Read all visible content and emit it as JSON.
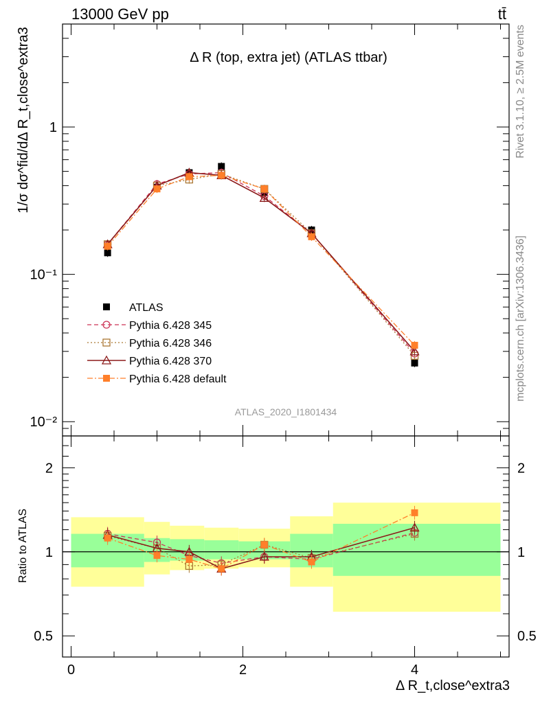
{
  "header": {
    "left": "13000 GeV pp",
    "right": "tt̄"
  },
  "side_labels": {
    "rivet": "Rivet 3.1.10, ≥ 2.5M events",
    "mcplots": "mcplots.cern.ch [arXiv:1306.3436]"
  },
  "chart_data": [
    {
      "type": "line",
      "title": "Δ R (top, extra jet) (ATLAS ttbar)",
      "analysis_id": "ATLAS_2020_I1801434",
      "ylabel": "1/σ dσ^fid/dΔ R_t,close^extra3",
      "yscale": "log",
      "xlim": [
        -0.1,
        5.1
      ],
      "ylim": [
        0.008,
        5
      ],
      "yticks": [
        "1",
        "10⁻¹",
        "10⁻²"
      ],
      "legend_position": "bottom-left",
      "x": [
        0.425,
        1.0,
        1.375,
        1.75,
        2.25,
        2.8,
        4.0
      ],
      "series": [
        {
          "name": "ATLAS",
          "color": "#000000",
          "marker": "filled-square",
          "line": "none",
          "values": [
            0.14,
            0.39,
            0.49,
            0.54,
            0.36,
            0.2,
            0.025
          ]
        },
        {
          "name": "Pythia 6.428 345",
          "color": "#cc3355",
          "marker": "open-circle",
          "line": "dashed",
          "values": [
            0.16,
            0.41,
            0.48,
            0.49,
            0.34,
            0.19,
            0.029
          ]
        },
        {
          "name": "Pythia 6.428 346",
          "color": "#aa7733",
          "marker": "open-square",
          "line": "dotted",
          "values": [
            0.16,
            0.4,
            0.44,
            0.48,
            0.38,
            0.19,
            0.028
          ]
        },
        {
          "name": "Pythia 6.428 370",
          "color": "#8b1a1a",
          "marker": "open-triangle",
          "line": "solid",
          "values": [
            0.16,
            0.4,
            0.49,
            0.47,
            0.33,
            0.19,
            0.03
          ]
        },
        {
          "name": "Pythia 6.428 default",
          "color": "#ff7f2a",
          "marker": "filled-square",
          "line": "dashdot",
          "values": [
            0.155,
            0.38,
            0.46,
            0.47,
            0.38,
            0.18,
            0.033
          ]
        }
      ]
    },
    {
      "type": "line",
      "ylabel": "Ratio to ATLAS",
      "xlabel": "Δ R_t,close^extra3",
      "yscale": "log",
      "xlim": [
        -0.1,
        5.1
      ],
      "ylim": [
        0.42,
        2.6
      ],
      "xticks": [
        "0",
        "2",
        "4"
      ],
      "yticks": [
        "0.5",
        "1",
        "2"
      ],
      "bands": {
        "bin_edges": [
          0.0,
          0.85,
          1.15,
          1.55,
          1.95,
          2.55,
          3.05,
          5.0
        ],
        "outer": {
          "color": "#ffff99",
          "low": [
            0.75,
            0.83,
            0.86,
            0.87,
            0.88,
            0.75,
            0.61
          ],
          "high": [
            1.33,
            1.28,
            1.24,
            1.22,
            1.21,
            1.34,
            1.5
          ]
        },
        "inner": {
          "color": "#99ff99",
          "low": [
            0.88,
            0.92,
            0.93,
            0.94,
            0.94,
            0.88,
            0.82
          ],
          "high": [
            1.16,
            1.12,
            1.11,
            1.1,
            1.09,
            1.16,
            1.26
          ]
        }
      },
      "x": [
        0.425,
        1.0,
        1.375,
        1.75,
        2.25,
        2.8,
        4.0
      ],
      "series": [
        {
          "name": "Pythia 6.428 345",
          "color": "#cc3355",
          "values": [
            1.16,
            1.08,
            0.97,
            0.91,
            0.96,
            0.94,
            1.17
          ]
        },
        {
          "name": "Pythia 6.428 346",
          "color": "#aa7733",
          "values": [
            1.14,
            1.03,
            0.89,
            0.9,
            1.06,
            0.95,
            1.16
          ]
        },
        {
          "name": "Pythia 6.428 370",
          "color": "#8b1a1a",
          "values": [
            1.15,
            1.03,
            1.0,
            0.87,
            0.96,
            0.96,
            1.22
          ]
        },
        {
          "name": "Pythia 6.428 default",
          "color": "#ff7f2a",
          "values": [
            1.12,
            0.97,
            0.94,
            0.87,
            1.06,
            0.92,
            1.38
          ]
        }
      ]
    }
  ]
}
